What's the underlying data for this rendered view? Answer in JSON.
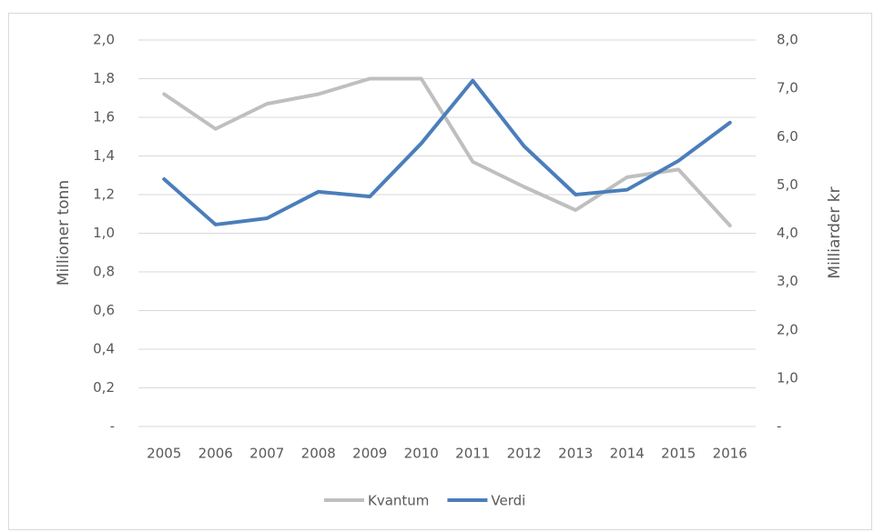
{
  "chart_data": {
    "type": "line",
    "categories": [
      "2005",
      "2006",
      "2007",
      "2008",
      "2009",
      "2010",
      "2011",
      "2012",
      "2013",
      "2014",
      "2015",
      "2016"
    ],
    "series": [
      {
        "name": "Kvantum",
        "color": "#bfbfbf",
        "values": [
          1.72,
          1.54,
          1.67,
          1.72,
          1.8,
          1.8,
          1.37,
          1.24,
          1.12,
          1.29,
          1.33,
          1.04
        ]
      },
      {
        "name": "Verdi",
        "color": "#4a7ebb",
        "axis": "y2",
        "values": [
          5.12,
          4.18,
          4.31,
          4.86,
          4.76,
          5.86,
          7.16,
          5.8,
          4.8,
          4.9,
          5.5,
          6.29
        ]
      }
    ],
    "ylabel": "Millioner tonn",
    "y2label": "Milliarder kr",
    "ylim": [
      0,
      2
    ],
    "yticks": [
      {
        "value": 0,
        "label": "-"
      },
      {
        "value": 0.2,
        "label": "0,2"
      },
      {
        "value": 0.4,
        "label": "0,4"
      },
      {
        "value": 0.6,
        "label": "0,6"
      },
      {
        "value": 0.8,
        "label": "0,8"
      },
      {
        "value": 1,
        "label": "1,0"
      },
      {
        "value": 1.2,
        "label": "1,2"
      },
      {
        "value": 1.4,
        "label": "1,4"
      },
      {
        "value": 1.6,
        "label": "1,6"
      },
      {
        "value": 1.8,
        "label": "1,8"
      },
      {
        "value": 2,
        "label": "2,0"
      }
    ],
    "y2lim": [
      0,
      8
    ],
    "y2ticks": [
      {
        "value": 0,
        "label": "-"
      },
      {
        "value": 1,
        "label": "1,0"
      },
      {
        "value": 2,
        "label": "2,0"
      },
      {
        "value": 3,
        "label": "3,0"
      },
      {
        "value": 4,
        "label": "4,0"
      },
      {
        "value": 5,
        "label": "5,0"
      },
      {
        "value": 6,
        "label": "6,0"
      },
      {
        "value": 7,
        "label": "7,0"
      },
      {
        "value": 8,
        "label": "8,0"
      }
    ],
    "grid": true,
    "legend": "bottom"
  }
}
